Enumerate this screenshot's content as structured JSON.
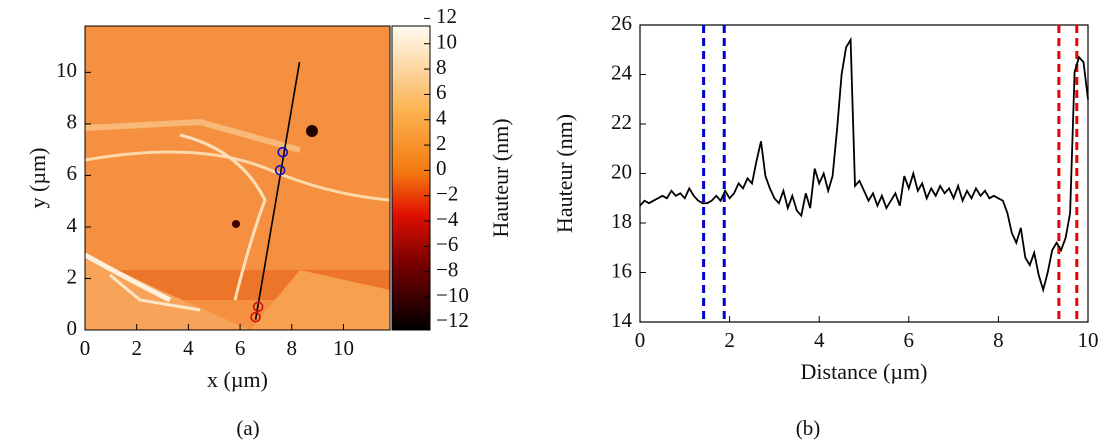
{
  "chart_data": [
    {
      "type": "image",
      "xlabel": "x (µm)",
      "ylabel": "y (µm)",
      "caption": "(a)",
      "xlim": [
        0,
        11.8
      ],
      "ylim": [
        0,
        11.8
      ],
      "xticks": [
        0,
        2,
        4,
        6,
        8,
        10
      ],
      "yticks": [
        0,
        2,
        4,
        6,
        8,
        10
      ],
      "profile": {
        "x": [
          6.6,
          8.3
        ],
        "y": [
          0.4,
          10.4
        ],
        "color": "#000000"
      },
      "circles": {
        "x": [
          7.65,
          7.55,
          6.7,
          6.6
        ],
        "y": [
          6.9,
          6.2,
          0.9,
          0.5
        ],
        "colors": [
          "#1010c0",
          "#1010c0",
          "#d01010",
          "#d01010"
        ]
      },
      "colorbar": {
        "label": "Hauteur (nm)",
        "lim": [
          -12.6,
          11.4
        ],
        "ticks": [
          {
            "value": -12,
            "label": "−12"
          },
          {
            "value": -10,
            "label": "−10"
          },
          {
            "value": -8,
            "label": "−8"
          },
          {
            "value": -6,
            "label": "−6"
          },
          {
            "value": -4,
            "label": "−4"
          },
          {
            "value": -2,
            "label": "−2"
          },
          0,
          2,
          4,
          6,
          8,
          10,
          12
        ]
      }
    },
    {
      "type": "line",
      "xlabel": "Distance (µm)",
      "ylabel": "Hauteur (nm)",
      "caption": "(b)",
      "xlim": [
        0,
        10
      ],
      "ylim": [
        14,
        26
      ],
      "xticks": [
        0,
        2,
        4,
        6,
        8,
        10
      ],
      "yticks": [
        14,
        16,
        18,
        20,
        22,
        24,
        26
      ],
      "vlines": {
        "x": [
          1.42,
          1.88,
          9.35,
          9.75
        ],
        "colors": [
          "#0000cc",
          "#0000cc",
          "#ee0000",
          "#ee0000"
        ]
      },
      "x": [
        0,
        0.1,
        0.2,
        0.3,
        0.4,
        0.5,
        0.6,
        0.7,
        0.8,
        0.9,
        1,
        1.1,
        1.2,
        1.3,
        1.4,
        1.5,
        1.6,
        1.7,
        1.8,
        1.9,
        2,
        2.1,
        2.2,
        2.3,
        2.4,
        2.5,
        2.6,
        2.7,
        2.8,
        2.9,
        3,
        3.1,
        3.2,
        3.3,
        3.4,
        3.5,
        3.6,
        3.7,
        3.8,
        3.9,
        4,
        4.1,
        4.2,
        4.3,
        4.4,
        4.5,
        4.6,
        4.7,
        4.8,
        4.9,
        5,
        5.1,
        5.2,
        5.3,
        5.4,
        5.5,
        5.6,
        5.7,
        5.8,
        5.9,
        6,
        6.1,
        6.2,
        6.3,
        6.4,
        6.5,
        6.6,
        6.7,
        6.8,
        6.9,
        7,
        7.1,
        7.2,
        7.3,
        7.4,
        7.5,
        7.6,
        7.7,
        7.8,
        7.9,
        8,
        8.1,
        8.2,
        8.3,
        8.4,
        8.5,
        8.6,
        8.7,
        8.8,
        8.9,
        9,
        9.1,
        9.2,
        9.3,
        9.4,
        9.5,
        9.6,
        9.7,
        9.8,
        9.9,
        10
      ],
      "series": [
        {
          "color": "#000000",
          "values": [
            18.7,
            18.9,
            18.8,
            18.9,
            19.0,
            19.1,
            19.0,
            19.3,
            19.1,
            19.2,
            19.0,
            19.4,
            19.1,
            18.9,
            18.8,
            18.8,
            18.9,
            19.1,
            18.9,
            19.3,
            19.0,
            19.2,
            19.6,
            19.4,
            19.8,
            19.6,
            20.5,
            21.3,
            19.9,
            19.4,
            19.0,
            18.8,
            19.3,
            18.6,
            19.1,
            18.5,
            18.3,
            19.2,
            18.6,
            20.2,
            19.6,
            20.0,
            19.3,
            19.9,
            21.8,
            24.0,
            25.1,
            25.4,
            19.5,
            19.7,
            19.3,
            18.9,
            19.2,
            18.7,
            19.1,
            18.6,
            18.9,
            19.2,
            18.7,
            19.9,
            19.4,
            20.0,
            19.3,
            19.6,
            19.0,
            19.4,
            19.1,
            19.5,
            19.2,
            19.4,
            19.0,
            19.5,
            18.9,
            19.3,
            19.0,
            19.4,
            19.1,
            19.3,
            19.0,
            19.1,
            19.0,
            18.9,
            18.4,
            17.6,
            17.2,
            17.8,
            16.6,
            16.3,
            16.8,
            15.9,
            15.3,
            16.0,
            16.9,
            17.2,
            16.9,
            17.4,
            18.4,
            24.1,
            24.7,
            24.5,
            23.0
          ]
        }
      ]
    }
  ]
}
